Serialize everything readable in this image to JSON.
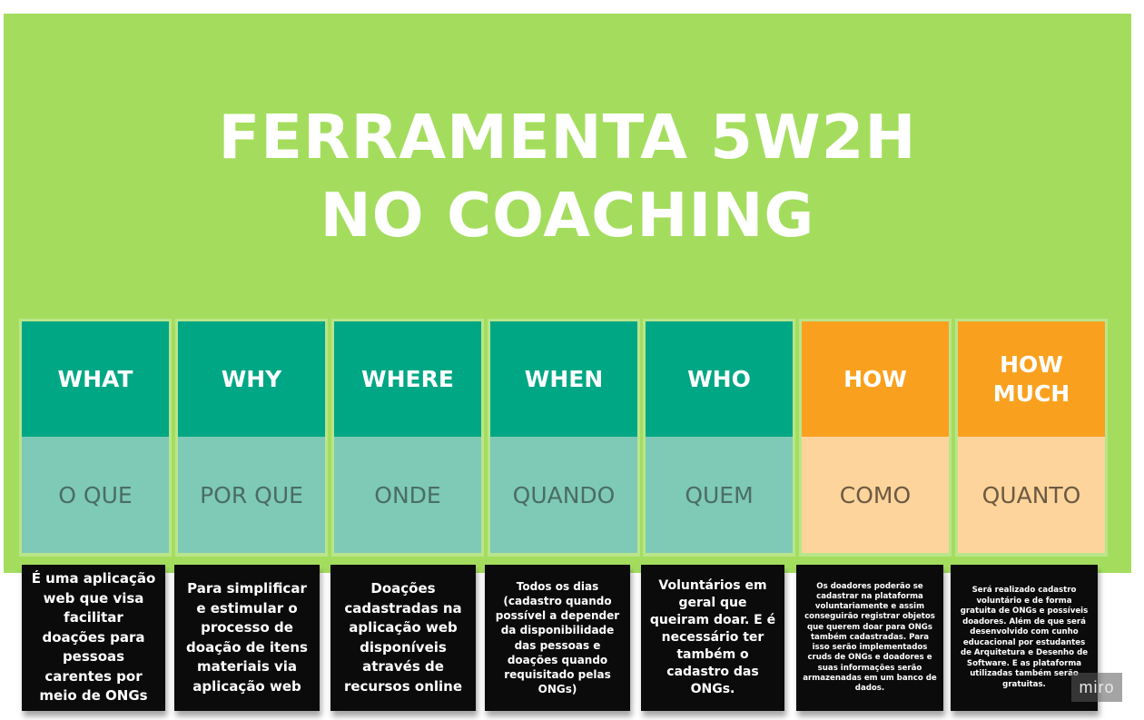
{
  "title": {
    "line1": "FERRAMENTA 5W2H",
    "line2": "NO COACHING"
  },
  "columns": [
    {
      "head": "WHAT",
      "sub": "O QUE",
      "color": "teal"
    },
    {
      "head": "WHY",
      "sub": "POR QUE",
      "color": "teal"
    },
    {
      "head": "WHERE",
      "sub": "ONDE",
      "color": "teal"
    },
    {
      "head": "WHEN",
      "sub": "QUANDO",
      "color": "teal"
    },
    {
      "head": "WHO",
      "sub": "QUEM",
      "color": "teal"
    },
    {
      "head": "HOW",
      "sub": "COMO",
      "color": "orange"
    },
    {
      "head": "HOW MUCH",
      "sub": "QUANTO",
      "color": "orange"
    }
  ],
  "notes": [
    {
      "text": "É uma aplicação web que visa facilitar doações para pessoas carentes por meio de ONGs"
    },
    {
      "text": "Para simplificar e estimular o processo de doação de itens materiais via aplicação web"
    },
    {
      "text": "Doações cadastradas na aplicação web disponíveis através de recursos online"
    },
    {
      "text": "Todos os dias (cadastro quando possível a depender da disponibilidade das pessoas e doações quando requisitado pelas ONGs)"
    },
    {
      "text": "Voluntários em geral que queiram doar. E é necessário ter também o cadastro das ONGs."
    },
    {
      "text": "Os doadores poderão se cadastrar na plataforma voluntariamente e assim conseguirão registrar objetos que querem doar para ONGs também cadastradas. Para isso serão implementados cruds de ONGs e doadores e suas informações serão armazenadas em um banco de dados."
    },
    {
      "text": "Será realizado cadastro voluntário e de forma gratuita de ONGs e possíveis doadores. Além de que será desenvolvido com cunho educacional por estudantes de Arquitetura e Desenho de Software. E as plataforma utilizadas também serão gratuitas."
    }
  ],
  "brand": {
    "label": "miro"
  },
  "colors": {
    "board": "#a4dd5e",
    "teal_head": "#00a784",
    "teal_sub": "#7ecab6",
    "orange_head": "#f9a11f",
    "orange_sub": "#fdd49b",
    "note": "#0b0b0b"
  }
}
